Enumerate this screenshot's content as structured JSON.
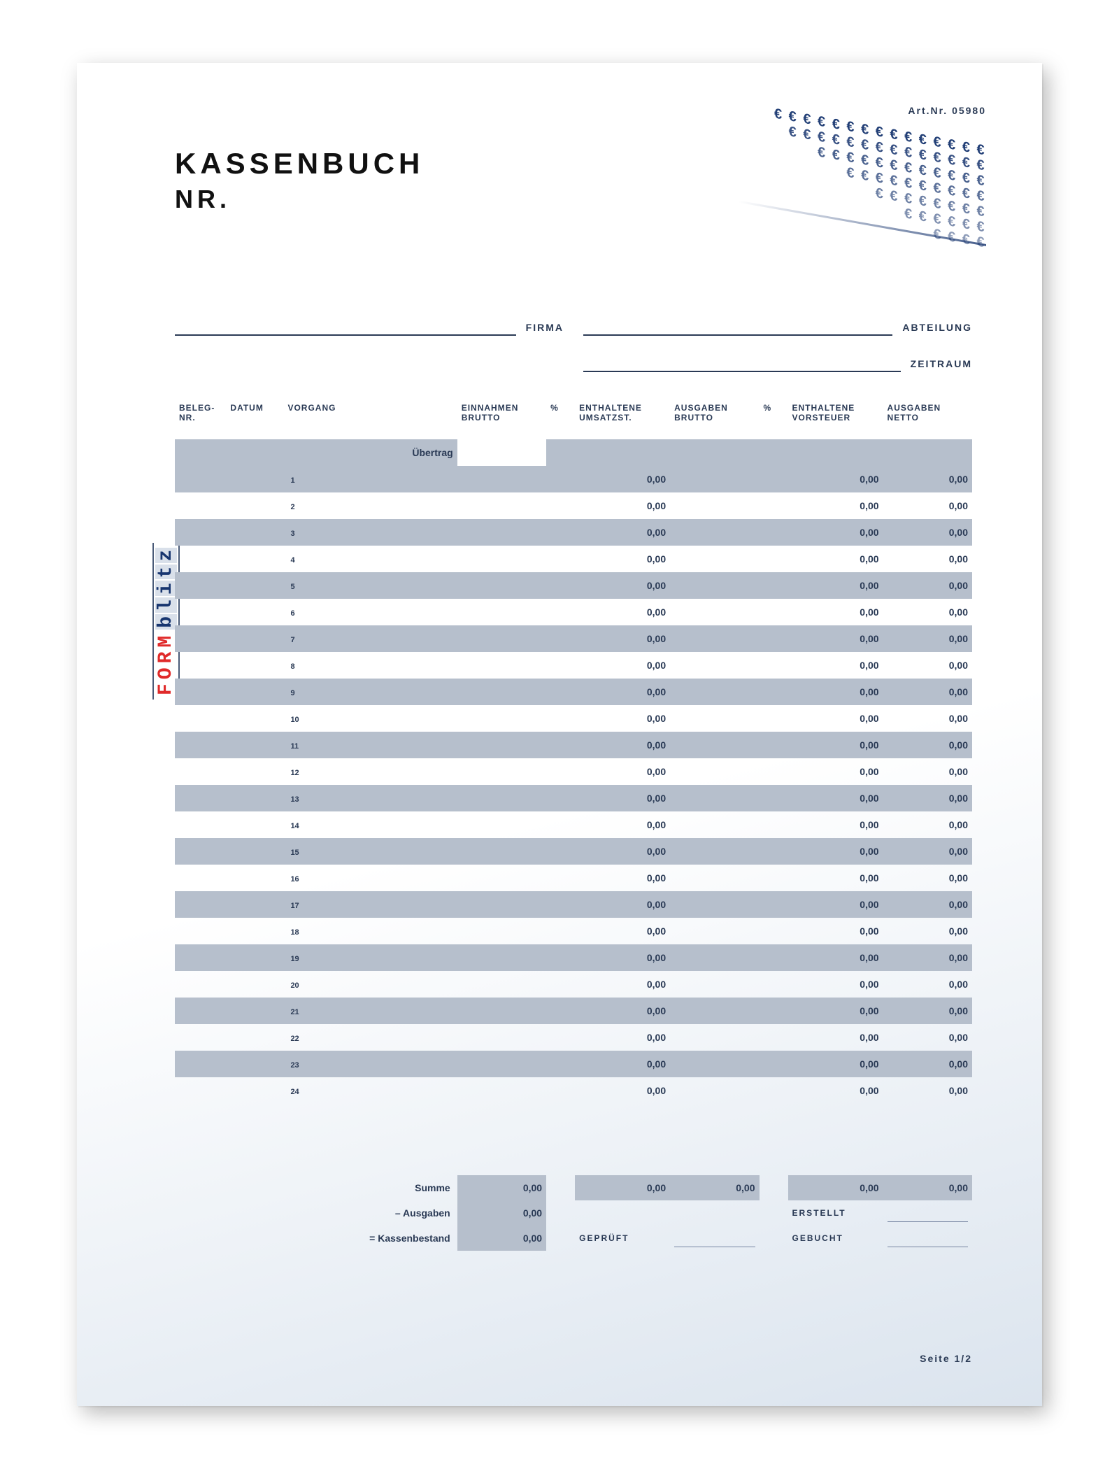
{
  "meta": {
    "art_nr_label": "Art.Nr. 05980",
    "page_label": "Seite 1/2"
  },
  "header": {
    "title": "KASSENBUCH",
    "subtitle": "NR."
  },
  "brand": {
    "form": "FORM",
    "blitz": [
      "b",
      "l",
      "i",
      "t",
      "z"
    ]
  },
  "fields": {
    "firma": "FIRMA",
    "abteilung": "ABTEILUNG",
    "zeitraum": "ZEITRAUM"
  },
  "table": {
    "columns": {
      "beleg_nr": "BELEG-\nNR.",
      "datum": "DATUM",
      "vorgang": "VORGANG",
      "einnahmen_brutto": "EINNAHMEN\nBRUTTO",
      "pct1": "%",
      "enthaltene_umsatzst": "ENTHALTENE\nUMSATZST.",
      "ausgaben_brutto": "AUSGABEN\nBRUTTO",
      "pct2": "%",
      "enthaltene_vorsteuer": "ENTHALTENE\nVORSTEUER",
      "ausgaben_netto": "AUSGABEN\nNETTO"
    },
    "uebertrag_label": "Übertrag",
    "zero": "0,00",
    "row_count": 24,
    "colors": {
      "shade": "#b6bfcc",
      "text": "#2a3a55"
    }
  },
  "summary": {
    "summe": "Summe",
    "ausgaben": "– Ausgaben",
    "kassenbestand": "= Kassenbestand",
    "geprueft": "GEPRÜFT",
    "erstellt": "ERSTELLT",
    "gebucht": "GEBUCHT",
    "zero": "0,00"
  }
}
